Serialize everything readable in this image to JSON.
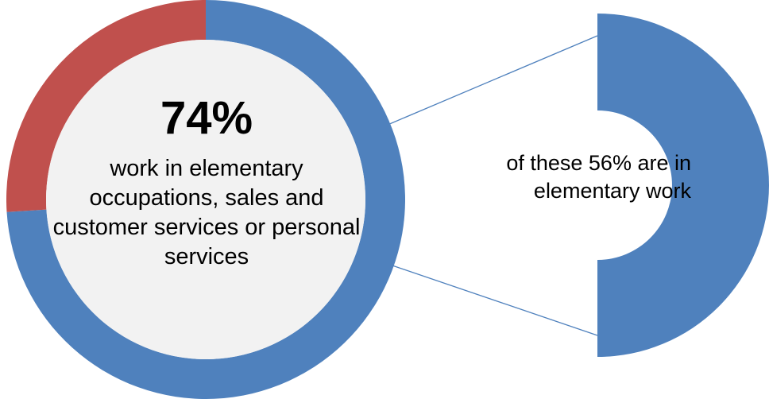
{
  "chart_data": [
    {
      "type": "pie",
      "variant": "donut",
      "slices": [
        {
          "value": 74,
          "color": "#4F81BD"
        },
        {
          "value": 26,
          "color": "#C0504D"
        }
      ],
      "center_value": "74%",
      "center_label": "work in elementary occupations, sales and customer services or personal services"
    },
    {
      "type": "pie",
      "variant": "partial-donut",
      "slices": [
        {
          "value": 56,
          "color": "#4F81BD"
        }
      ],
      "label": "of these 56% are in elementary work"
    }
  ],
  "colors": {
    "blue": "#4F81BD",
    "red": "#C0504D",
    "center_fill": "#F2F2F2",
    "connector": "#4F81BD"
  }
}
